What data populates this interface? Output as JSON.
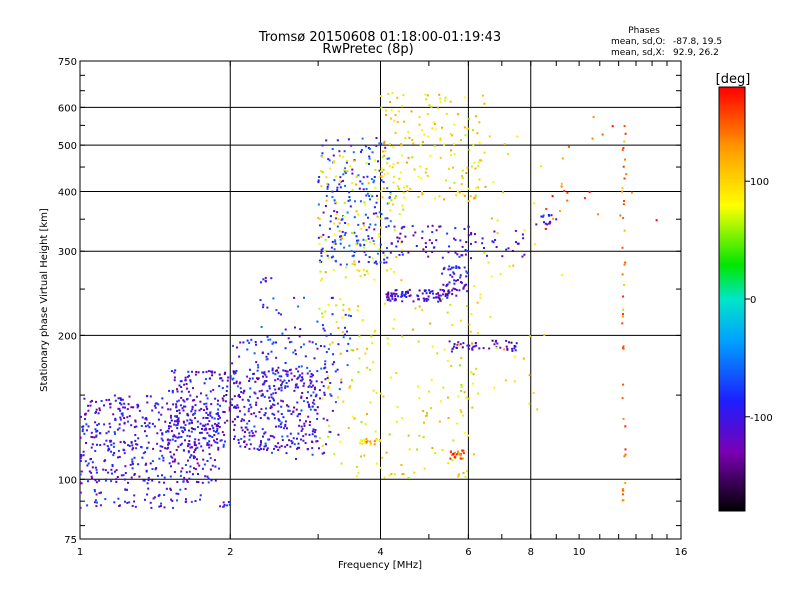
{
  "chart_data": {
    "type": "scatter",
    "title": "Tromsø 20150608 01:18:00-01:19:43",
    "subtitle": "RwPretec (8p)",
    "xlabel": "Frequency [MHz]",
    "ylabel": "Stationary phase Virtual Height [km]",
    "x_scale": "log",
    "y_scale": "log",
    "xlim": [
      1,
      16
    ],
    "ylim": [
      75,
      750
    ],
    "x_ticks": [
      1,
      2,
      4,
      6,
      8,
      10,
      16
    ],
    "y_ticks": [
      75,
      100,
      200,
      300,
      400,
      500,
      600,
      750
    ],
    "x_gridlines": [
      2,
      4,
      6,
      8
    ],
    "y_gridlines": [
      100,
      200,
      300,
      400,
      500,
      600
    ],
    "grid": true,
    "phase_stats": {
      "heading": "Phases",
      "o_label": "mean, sd,O:",
      "o_values": "-87.8, 19.5",
      "x_label": "mean, sd,X:",
      "x_values": "92.9, 26.2"
    },
    "colorbar": {
      "label": "[deg]",
      "range": [
        -180,
        180
      ],
      "ticks": [
        100,
        0,
        -100
      ],
      "colormap": "rainbow (black-purple-blue-cyan-green-yellow-orange-red)"
    },
    "clusters": [
      {
        "x_range": [
          1.0,
          1.9
        ],
        "y_range": [
          98,
          150
        ],
        "phase": -105,
        "count": 480
      },
      {
        "x_range": [
          1.0,
          1.75
        ],
        "y_range": [
          87,
          96
        ],
        "phase": -100,
        "count": 60
      },
      {
        "x_range": [
          1.5,
          3.0
        ],
        "y_range": [
          115,
          170
        ],
        "phase": -110,
        "count": 420
      },
      {
        "x_range": [
          2.0,
          3.3
        ],
        "y_range": [
          110,
          200
        ],
        "phase": -95,
        "count": 150
      },
      {
        "x_range": [
          2.2,
          3.5
        ],
        "y_range": [
          150,
          240
        ],
        "phase": -90,
        "count": 90
      },
      {
        "x_range": [
          3.0,
          4.2
        ],
        "y_range": [
          280,
          520
        ],
        "phase": -85,
        "count": 200
      },
      {
        "x_range": [
          3.0,
          4.5
        ],
        "y_range": [
          260,
          480
        ],
        "phase": 90,
        "count": 120
      },
      {
        "x_range": [
          4.0,
          6.5
        ],
        "y_range": [
          380,
          650
        ],
        "phase": 95,
        "count": 160
      },
      {
        "x_range": [
          4.1,
          5.5
        ],
        "y_range": [
          235,
          250
        ],
        "phase": -115,
        "count": 90
      },
      {
        "x_range": [
          5.5,
          7.5
        ],
        "y_range": [
          185,
          195
        ],
        "phase": -120,
        "count": 45
      },
      {
        "x_range": [
          4.2,
          7.8
        ],
        "y_range": [
          290,
          340
        ],
        "phase": -110,
        "count": 90
      },
      {
        "x_range": [
          5.3,
          6.0
        ],
        "y_range": [
          240,
          280
        ],
        "phase": -110,
        "count": 50
      },
      {
        "x_range": [
          3.0,
          6.2
        ],
        "y_range": [
          100,
          240
        ],
        "phase": 90,
        "count": 170
      },
      {
        "x_range": [
          5.5,
          5.9
        ],
        "y_range": [
          110,
          115
        ],
        "phase": 150,
        "count": 25
      },
      {
        "x_range": [
          3.6,
          4.0
        ],
        "y_range": [
          118,
          122
        ],
        "phase": 110,
        "count": 20
      },
      {
        "x_range": [
          6.0,
          9.5
        ],
        "y_range": [
          140,
          600
        ],
        "phase": 100,
        "count": 50
      },
      {
        "x_range": [
          12.2,
          12.4
        ],
        "y_range": [
          85,
          560
        ],
        "phase": 140,
        "count": 40
      },
      {
        "x_range": [
          8.5,
          14.5
        ],
        "y_range": [
          330,
          580
        ],
        "phase": 160,
        "count": 20
      },
      {
        "x_range": [
          8.2,
          9.0
        ],
        "y_range": [
          340,
          360
        ],
        "phase": -100,
        "count": 15
      },
      {
        "x_range": [
          2.3,
          2.45
        ],
        "y_range": [
          258,
          265
        ],
        "phase": -95,
        "count": 6
      },
      {
        "x_range": [
          1.9,
          2.0
        ],
        "y_range": [
          86,
          92
        ],
        "phase": -100,
        "count": 8
      }
    ]
  }
}
